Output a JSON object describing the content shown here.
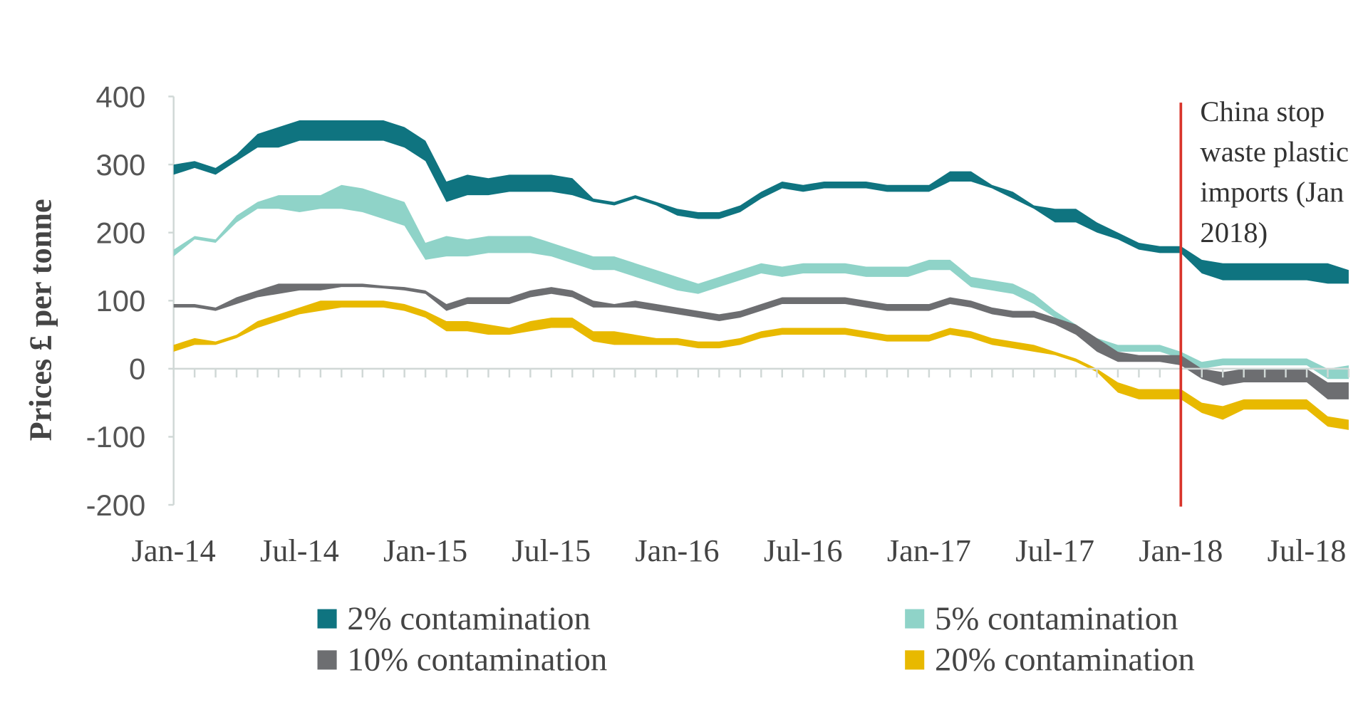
{
  "chart_data": {
    "type": "range-area",
    "ylabel": "Prices £ per tonne",
    "categories": [
      "Jan-14",
      null,
      null,
      null,
      null,
      null,
      "Jul-14",
      null,
      null,
      null,
      null,
      null,
      "Jan-15",
      null,
      null,
      null,
      null,
      null,
      "Jul-15",
      null,
      null,
      null,
      null,
      null,
      "Jan-16",
      null,
      null,
      null,
      null,
      null,
      "Jul-16",
      null,
      null,
      null,
      null,
      null,
      "Jan-17",
      null,
      null,
      null,
      null,
      null,
      "Jul-17",
      null,
      null,
      null,
      null,
      null,
      "Jan-18",
      null,
      null,
      null,
      null,
      null,
      "Jul-18",
      null,
      null
    ],
    "ylim": [
      -200,
      400
    ],
    "yticks": [
      -200,
      -100,
      0,
      100,
      200,
      300,
      400
    ],
    "annotation": {
      "x": "Jan-18",
      "color": "#d9342b",
      "lines": [
        "China stop",
        "waste plastic",
        "imports (Jan",
        "2018)"
      ]
    },
    "series": [
      {
        "name": "2% contamination",
        "color": "#0f7480",
        "high": [
          300,
          305,
          295,
          315,
          345,
          355,
          365,
          365,
          365,
          365,
          365,
          355,
          335,
          275,
          285,
          280,
          285,
          285,
          285,
          280,
          250,
          245,
          255,
          245,
          235,
          230,
          230,
          240,
          260,
          275,
          270,
          275,
          275,
          275,
          270,
          270,
          270,
          290,
          290,
          270,
          260,
          240,
          235,
          235,
          215,
          200,
          185,
          180,
          180,
          160,
          155,
          155,
          155,
          155,
          155,
          155,
          145
        ],
        "low": [
          285,
          295,
          285,
          305,
          325,
          325,
          335,
          335,
          335,
          335,
          335,
          325,
          305,
          245,
          255,
          255,
          260,
          260,
          260,
          255,
          245,
          240,
          250,
          240,
          225,
          220,
          220,
          230,
          250,
          265,
          260,
          265,
          265,
          265,
          260,
          260,
          260,
          275,
          275,
          265,
          250,
          235,
          215,
          215,
          200,
          190,
          175,
          170,
          170,
          140,
          130,
          130,
          130,
          130,
          130,
          125,
          125
        ]
      },
      {
        "name": "5% contamination",
        "color": "#8fd3c8",
        "high": [
          175,
          195,
          190,
          225,
          245,
          255,
          255,
          255,
          270,
          265,
          255,
          245,
          185,
          195,
          190,
          195,
          195,
          195,
          185,
          175,
          165,
          165,
          155,
          145,
          135,
          125,
          135,
          145,
          155,
          150,
          155,
          155,
          155,
          150,
          150,
          150,
          160,
          160,
          135,
          130,
          125,
          110,
          85,
          65,
          45,
          35,
          35,
          35,
          25,
          10,
          15,
          15,
          15,
          15,
          15,
          0,
          5
        ],
        "low": [
          165,
          190,
          185,
          215,
          235,
          235,
          230,
          235,
          235,
          230,
          220,
          210,
          160,
          165,
          165,
          170,
          170,
          170,
          165,
          155,
          145,
          145,
          135,
          125,
          115,
          110,
          120,
          130,
          140,
          135,
          140,
          140,
          140,
          135,
          135,
          135,
          145,
          145,
          120,
          115,
          110,
          95,
          75,
          55,
          35,
          25,
          25,
          25,
          15,
          0,
          5,
          5,
          5,
          5,
          5,
          -15,
          -15
        ]
      },
      {
        "name": "10% contamination",
        "color": "#6d6e71",
        "high": [
          95,
          95,
          90,
          105,
          115,
          125,
          125,
          125,
          125,
          125,
          122,
          120,
          115,
          95,
          105,
          105,
          105,
          115,
          120,
          115,
          100,
          95,
          100,
          95,
          90,
          85,
          80,
          85,
          95,
          105,
          105,
          105,
          105,
          100,
          95,
          95,
          95,
          105,
          100,
          90,
          85,
          85,
          75,
          65,
          45,
          25,
          20,
          20,
          20,
          0,
          -5,
          0,
          0,
          0,
          0,
          -20,
          -20
        ],
        "low": [
          90,
          90,
          85,
          95,
          105,
          110,
          115,
          115,
          120,
          120,
          118,
          115,
          110,
          85,
          95,
          95,
          95,
          105,
          110,
          105,
          90,
          90,
          90,
          85,
          80,
          75,
          70,
          75,
          85,
          95,
          95,
          95,
          95,
          90,
          85,
          85,
          85,
          95,
          90,
          80,
          75,
          75,
          65,
          50,
          25,
          10,
          10,
          10,
          5,
          -15,
          -25,
          -20,
          -20,
          -20,
          -20,
          -45,
          -45
        ]
      },
      {
        "name": "20% contamination",
        "color": "#e8b900",
        "high": [
          35,
          45,
          40,
          50,
          70,
          80,
          90,
          100,
          100,
          100,
          100,
          95,
          85,
          70,
          70,
          65,
          60,
          70,
          75,
          75,
          55,
          55,
          50,
          45,
          45,
          40,
          40,
          45,
          55,
          60,
          60,
          60,
          60,
          55,
          50,
          50,
          50,
          60,
          55,
          45,
          40,
          35,
          25,
          15,
          0,
          -20,
          -30,
          -30,
          -30,
          -50,
          -55,
          -45,
          -45,
          -45,
          -45,
          -70,
          -75
        ],
        "low": [
          25,
          35,
          35,
          45,
          60,
          70,
          80,
          85,
          90,
          90,
          90,
          85,
          75,
          55,
          55,
          50,
          50,
          55,
          60,
          60,
          40,
          35,
          35,
          35,
          35,
          30,
          30,
          35,
          45,
          50,
          50,
          50,
          50,
          45,
          40,
          40,
          40,
          50,
          45,
          35,
          30,
          25,
          20,
          10,
          -5,
          -35,
          -45,
          -45,
          -45,
          -65,
          -75,
          -60,
          -60,
          -60,
          -60,
          -85,
          -90
        ]
      }
    ]
  }
}
